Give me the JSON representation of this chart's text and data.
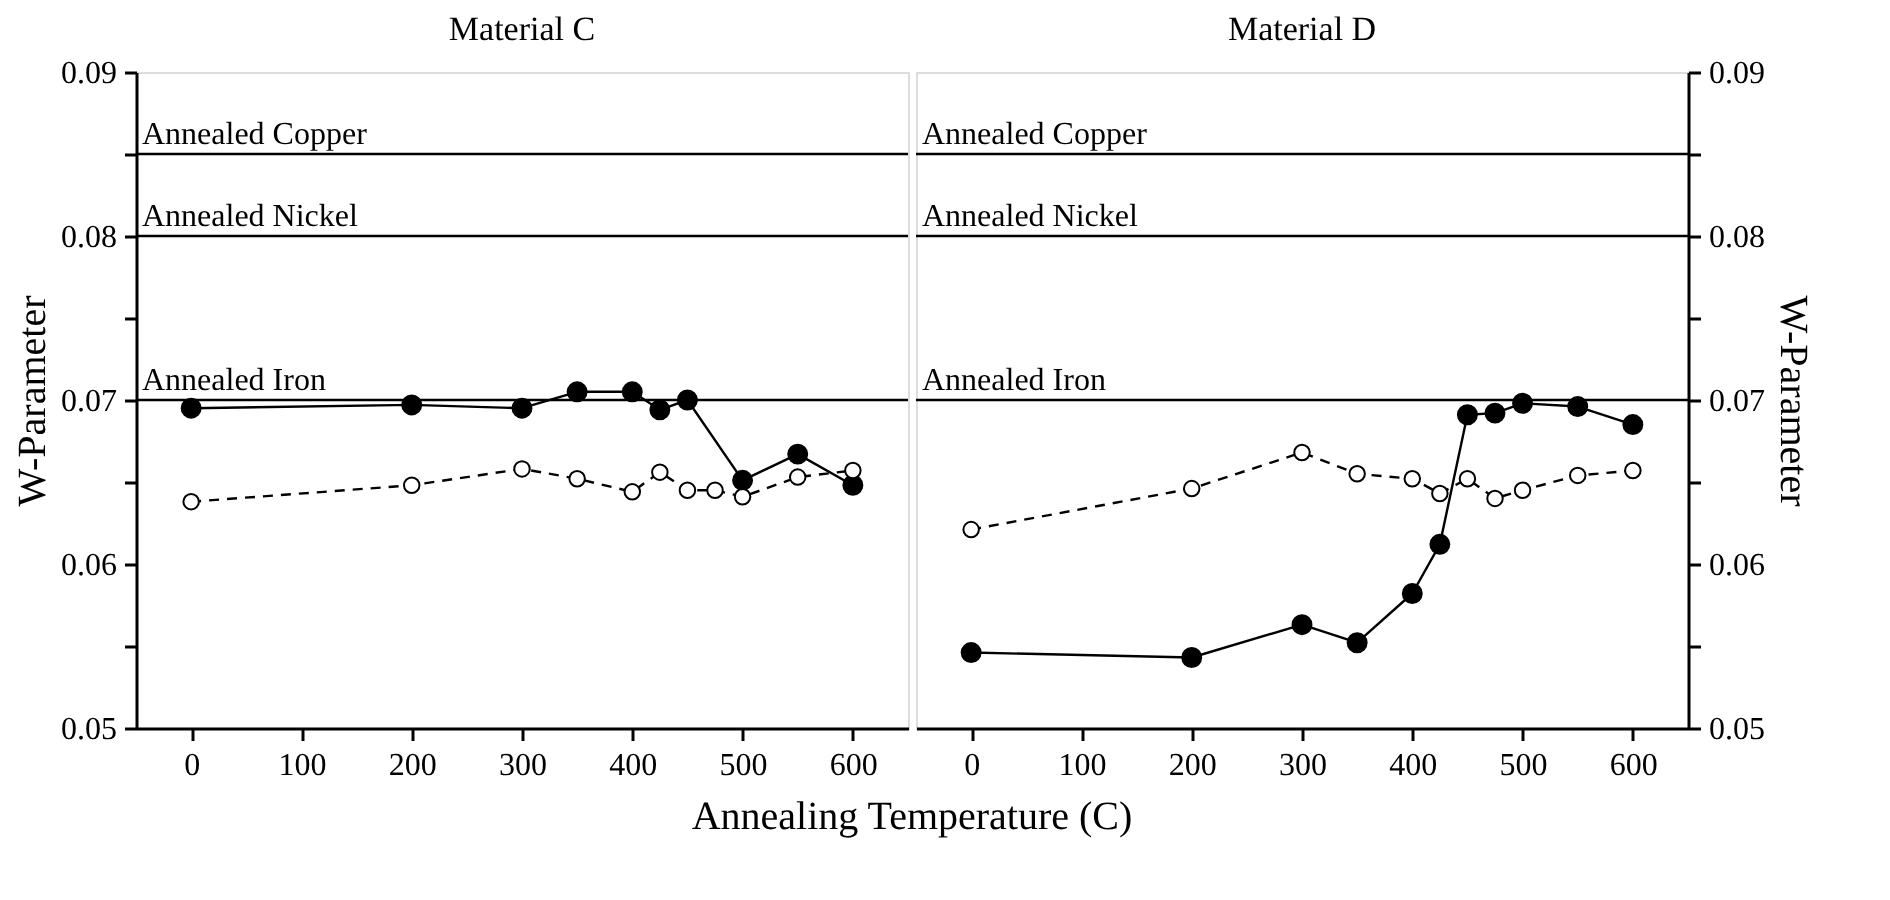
{
  "chart_data": [
    {
      "type": "line",
      "title": "Material C",
      "xlabel": "Annealing Temperature (C)",
      "ylabel": "W-Parameter",
      "xlim": [
        -50,
        650
      ],
      "ylim": [
        0.05,
        0.09
      ],
      "xticks": [
        0,
        100,
        200,
        300,
        400,
        500,
        600
      ],
      "yticks": [
        0.05,
        {
          "value": 0.055,
          "label": null
        },
        0.06,
        {
          "value": 0.065,
          "label": null
        },
        0.07,
        {
          "value": 0.075,
          "label": null
        },
        0.08,
        {
          "value": 0.085,
          "label": null
        },
        0.09
      ],
      "marker": "circle",
      "ref_lines": [
        {
          "axis": "y",
          "value": 0.085,
          "label": "Annealed Copper"
        },
        {
          "axis": "y",
          "value": 0.08,
          "label": "Annealed Nickel"
        },
        {
          "axis": "y",
          "value": 0.07,
          "label": "Annealed Iron"
        }
      ],
      "series": [
        {
          "color": "#000000",
          "line_style": "solid",
          "x": [
            0,
            200,
            300,
            350,
            400,
            425,
            450,
            500,
            550,
            600
          ],
          "values": [
            0.0695,
            0.0697,
            0.0695,
            0.0705,
            0.0705,
            0.0694,
            0.07,
            0.0651,
            0.0667,
            0.0648
          ]
        },
        {
          "color": "#000000",
          "line_style": "dashed",
          "x": [
            0,
            200,
            300,
            350,
            400,
            425,
            450,
            475,
            500,
            550,
            600
          ],
          "values": [
            0.0638,
            0.0648,
            0.0658,
            0.0652,
            0.0644,
            0.0656,
            0.0645,
            0.0645,
            0.0641,
            0.0653,
            0.0657
          ]
        }
      ]
    },
    {
      "type": "line",
      "title": "Material D",
      "y2label": "W-Parameter",
      "xlim": [
        -50,
        650
      ],
      "y2lim": [
        0.05,
        0.09
      ],
      "xticks": [
        0,
        100,
        200,
        300,
        400,
        500,
        600
      ],
      "y2ticks": [
        0.05,
        {
          "value": 0.055,
          "label": null
        },
        0.06,
        {
          "value": 0.065,
          "label": null
        },
        0.07,
        {
          "value": 0.075,
          "label": null
        },
        0.08,
        {
          "value": 0.085,
          "label": null
        },
        0.09
      ],
      "marker": "circle",
      "ref_lines": [
        {
          "axis": "y2",
          "value": 0.085,
          "label": "Annealed Copper"
        },
        {
          "axis": "y2",
          "value": 0.08,
          "label": "Annealed Nickel"
        },
        {
          "axis": "y2",
          "value": 0.07,
          "label": "Annealed Iron"
        }
      ],
      "series": [
        {
          "axis": "y2",
          "color": "#000000",
          "line_style": "solid",
          "x": [
            0,
            200,
            300,
            350,
            400,
            425,
            450,
            475,
            500,
            550,
            600
          ],
          "values": [
            0.0546,
            0.0543,
            0.0563,
            0.0552,
            0.0582,
            0.0612,
            0.0691,
            0.0692,
            0.0698,
            0.0696,
            0.0685
          ]
        },
        {
          "axis": "y2",
          "color": "#000000",
          "line_style": "dashed",
          "x": [
            0,
            200,
            300,
            350,
            400,
            425,
            450,
            475,
            500,
            550,
            600
          ],
          "values": [
            0.0621,
            0.0646,
            0.0668,
            0.0655,
            0.0652,
            0.0643,
            0.0652,
            0.064,
            0.0645,
            0.0654,
            0.0657
          ]
        }
      ]
    }
  ]
}
